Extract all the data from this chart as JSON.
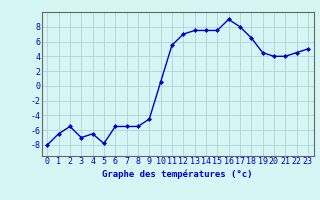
{
  "hours": [
    0,
    1,
    2,
    3,
    4,
    5,
    6,
    7,
    8,
    9,
    10,
    11,
    12,
    13,
    14,
    15,
    16,
    17,
    18,
    19,
    20,
    21,
    22,
    23
  ],
  "temps": [
    -8,
    -6.5,
    -5.5,
    -7,
    -6.5,
    -7.8,
    -5.5,
    -5.5,
    -5.5,
    -4.5,
    0.5,
    5.5,
    7,
    7.5,
    7.5,
    7.5,
    9,
    8,
    6.5,
    4.5,
    4,
    4,
    4.5,
    5
  ],
  "line_color": "#0000cc",
  "marker": "D",
  "marker_size": 2.0,
  "bg_color": "#d6f5f5",
  "grid_color": "#aacccc",
  "xlabel": "Graphe des températures (°c)",
  "ylabel_ticks": [
    -8,
    -6,
    -4,
    -2,
    0,
    2,
    4,
    6,
    8
  ],
  "ylim": [
    -9.5,
    10
  ],
  "xlim": [
    -0.5,
    23.5
  ],
  "xlabel_fontsize": 6.5,
  "tick_fontsize": 6,
  "line_width": 1.0
}
